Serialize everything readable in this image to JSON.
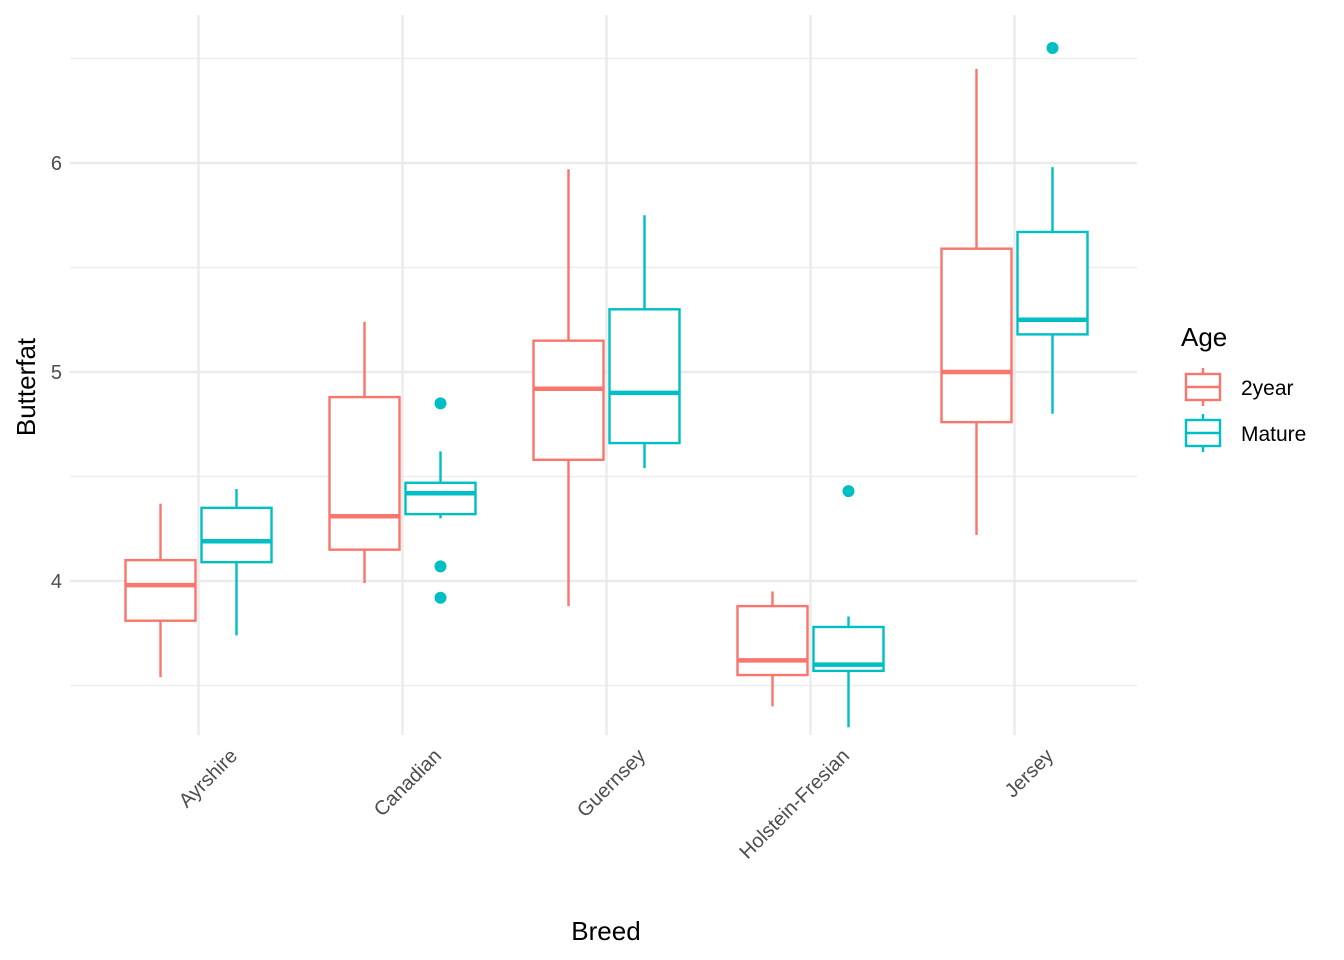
{
  "chart_data": {
    "type": "boxplot",
    "title": "",
    "xlabel": "Breed",
    "ylabel": "Butterfat",
    "ylim": [
      3.3,
      6.75
    ],
    "y_ticks": [
      4,
      5,
      6
    ],
    "y_tick_labels": [
      "4",
      "5",
      "6"
    ],
    "grid": true,
    "legend": {
      "title": "Age",
      "placement": "right"
    },
    "categories": [
      "Ayrshire",
      "Canadian",
      "Guernsey",
      "Holstein-Fresian",
      "Jersey"
    ],
    "series": [
      {
        "name": "2year",
        "color": "#F8766D",
        "boxes": [
          {
            "min": 3.54,
            "q1": 3.81,
            "median": 3.98,
            "q3": 4.1,
            "max": 4.37,
            "outliers": []
          },
          {
            "min": 3.99,
            "q1": 4.15,
            "median": 4.31,
            "q3": 4.88,
            "max": 5.24,
            "outliers": []
          },
          {
            "min": 3.88,
            "q1": 4.58,
            "median": 4.92,
            "q3": 5.15,
            "max": 5.97,
            "outliers": []
          },
          {
            "min": 3.4,
            "q1": 3.55,
            "median": 3.62,
            "q3": 3.88,
            "max": 3.95,
            "outliers": []
          },
          {
            "min": 4.22,
            "q1": 4.76,
            "median": 5.0,
            "q3": 5.59,
            "max": 6.45,
            "outliers": []
          }
        ]
      },
      {
        "name": "Mature",
        "color": "#00BFC4",
        "boxes": [
          {
            "min": 3.74,
            "q1": 4.09,
            "median": 4.19,
            "q3": 4.35,
            "max": 4.44,
            "outliers": []
          },
          {
            "min": 4.3,
            "q1": 4.32,
            "median": 4.42,
            "q3": 4.47,
            "max": 4.62,
            "outliers": [
              4.85,
              4.07,
              3.92
            ]
          },
          {
            "min": 4.54,
            "q1": 4.66,
            "median": 4.9,
            "q3": 5.3,
            "max": 5.75,
            "outliers": []
          },
          {
            "min": 3.3,
            "q1": 3.57,
            "median": 3.6,
            "q3": 3.78,
            "max": 3.83,
            "outliers": [
              4.43
            ]
          },
          {
            "min": 4.8,
            "q1": 5.18,
            "median": 5.25,
            "q3": 5.67,
            "max": 5.98,
            "outliers": [
              6.55
            ]
          }
        ]
      }
    ]
  }
}
